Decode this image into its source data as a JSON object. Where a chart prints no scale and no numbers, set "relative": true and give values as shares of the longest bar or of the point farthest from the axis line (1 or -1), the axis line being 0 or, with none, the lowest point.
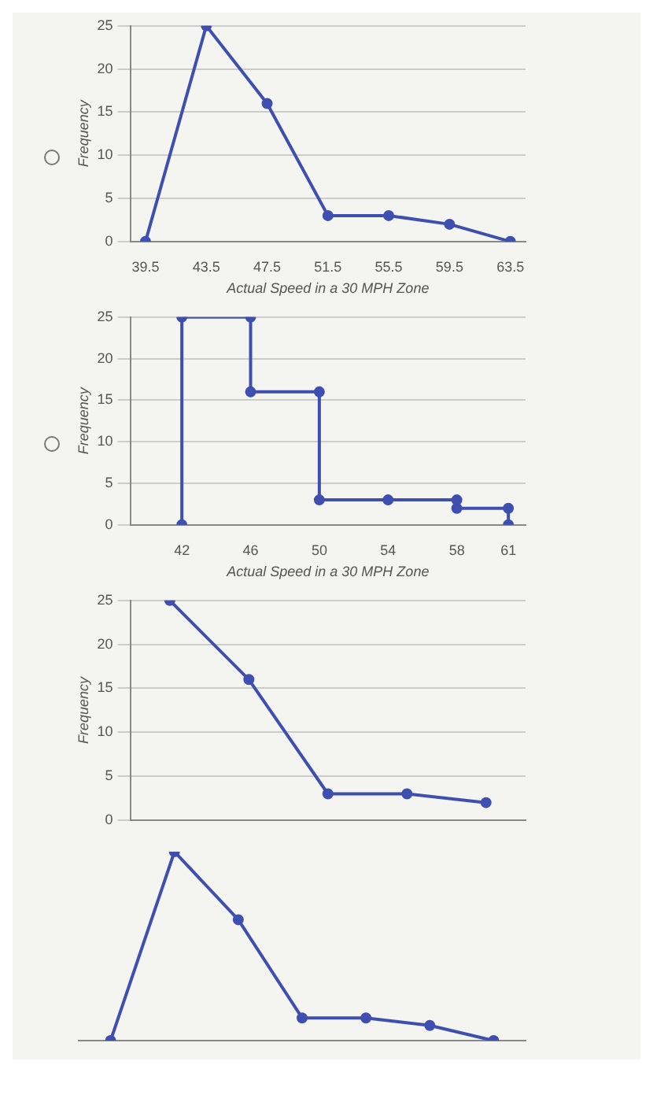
{
  "chart_data": [
    {
      "type": "line",
      "xlabel": "Actual Speed in a 30 MPH Zone",
      "ylabel": "Frequency",
      "x": [
        39.5,
        43.5,
        47.5,
        51.5,
        55.5,
        59.5,
        63.5
      ],
      "series": [
        {
          "color": "#3f4fb0",
          "values": [
            0,
            25,
            16,
            3,
            3,
            2,
            0
          ]
        }
      ],
      "xlim": [
        38.5,
        64.5
      ],
      "xticks": [
        39.5,
        43.5,
        47.5,
        51.5,
        55.5,
        59.5,
        63.5
      ],
      "ylim": [
        0,
        25
      ],
      "yticks": [
        0,
        5,
        10,
        15,
        20,
        25
      ],
      "grid": "y",
      "marker": "circle"
    },
    {
      "type": "line",
      "xlabel": "Actual Speed in a 30 MPH Zone",
      "ylabel": "Frequency",
      "series": [
        {
          "color": "#3f4fb0",
          "x": [
            42,
            42,
            46,
            46,
            50,
            50,
            54,
            58,
            58,
            61,
            61
          ],
          "values": [
            0,
            25,
            25,
            16,
            16,
            3,
            3,
            3,
            2,
            2,
            0
          ]
        }
      ],
      "xlim": [
        39,
        62
      ],
      "xticks": [
        42,
        46,
        50,
        54,
        58,
        61
      ],
      "ylim": [
        0,
        25
      ],
      "yticks": [
        0,
        5,
        10,
        15,
        20,
        25
      ],
      "grid": "y",
      "marker": "circle"
    },
    {
      "type": "line",
      "ylabel": "Frequency",
      "categories": [
        null,
        null,
        null,
        null,
        null
      ],
      "series": [
        {
          "color": "#3f4fb0",
          "values": [
            25,
            16,
            3,
            3,
            2
          ]
        }
      ],
      "ylim": [
        0,
        25
      ],
      "yticks": [
        0,
        5,
        10,
        15,
        20,
        25
      ],
      "grid": "y",
      "tick_labels": "y",
      "marker": "circle"
    },
    {
      "type": "line",
      "relative": true,
      "categories": [
        null,
        null,
        null,
        null,
        null,
        null,
        null
      ],
      "series": [
        {
          "color": "#3f4fb0",
          "values": [
            0,
            1,
            0.64,
            0.12,
            0.12,
            0.08,
            0
          ]
        }
      ],
      "tick_labels": false,
      "marker": "circle"
    }
  ]
}
